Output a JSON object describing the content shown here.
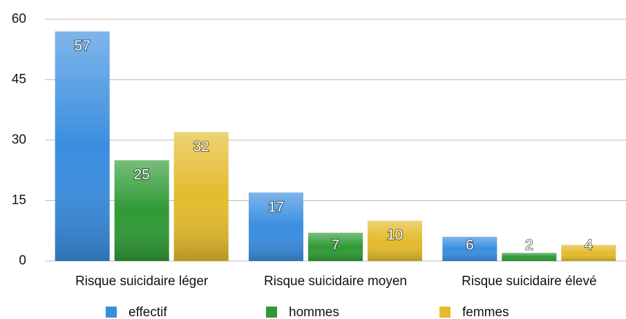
{
  "chart_data": {
    "type": "bar",
    "categories": [
      "Risque suicidaire léger",
      "Risque suicidaire moyen",
      "Risque suicidaire élevé"
    ],
    "series": [
      {
        "name": "effectif",
        "color": "#3a8ee0",
        "values": [
          57,
          17,
          6
        ]
      },
      {
        "name": "hommes",
        "color": "#2f9a35",
        "values": [
          25,
          7,
          2
        ]
      },
      {
        "name": "femmes",
        "color": "#e3bb2c",
        "values": [
          32,
          10,
          4
        ]
      }
    ],
    "ylim": [
      0,
      60
    ],
    "yticks": [
      0,
      15,
      30,
      45,
      60
    ],
    "grid": true,
    "legend": "bottom"
  }
}
